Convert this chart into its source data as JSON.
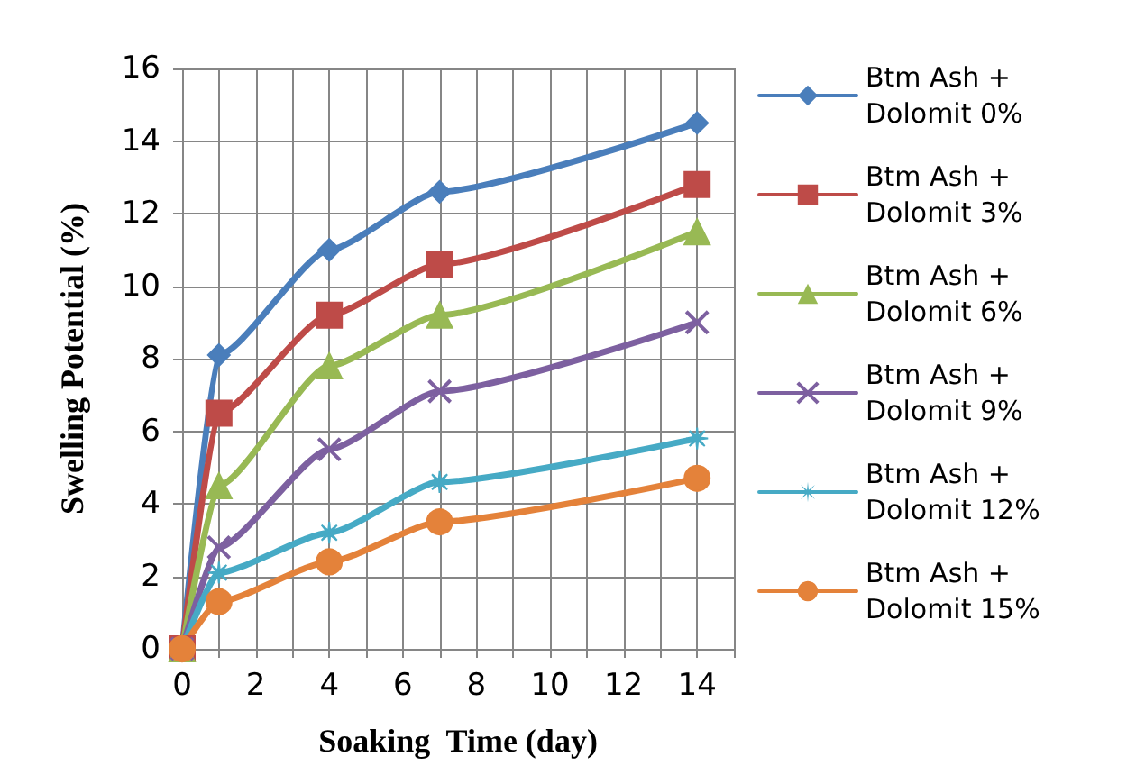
{
  "chart_data": {
    "type": "line",
    "xlabel": "Soaking  Time (day)",
    "ylabel": "Swelling Potential (%)",
    "xlim": [
      0,
      15
    ],
    "xticks": [
      0,
      {
        "value": 1,
        "label": null
      },
      2,
      {
        "value": 3,
        "label": null
      },
      4,
      {
        "value": 5,
        "label": null
      },
      6,
      {
        "value": 7,
        "label": null
      },
      8,
      {
        "value": 9,
        "label": null
      },
      10,
      {
        "value": 11,
        "label": null
      },
      12,
      {
        "value": 13,
        "label": null
      },
      14,
      {
        "value": 15,
        "label": null
      }
    ],
    "ylim": [
      0,
      16
    ],
    "yticks": [
      0,
      2,
      4,
      6,
      8,
      10,
      12,
      14,
      16
    ],
    "grid": true,
    "legend": "right",
    "series": [
      {
        "name": "Btm Ash + Dolomit 0%",
        "color": "#4a7ebb",
        "marker": "diamond",
        "x": [
          0,
          1,
          4,
          7,
          14
        ],
        "values": [
          0,
          8.1,
          11.0,
          12.6,
          14.5
        ]
      },
      {
        "name": "Btm Ash + Dolomit 3%",
        "color": "#be4b48",
        "marker": "square",
        "x": [
          0,
          1,
          4,
          7,
          14
        ],
        "values": [
          0,
          6.5,
          9.2,
          10.6,
          12.8
        ]
      },
      {
        "name": "Btm Ash + Dolomit 6%",
        "color": "#98b954",
        "marker": "triangle",
        "x": [
          0,
          1,
          4,
          7,
          14
        ],
        "values": [
          0,
          4.5,
          7.8,
          9.2,
          11.5
        ]
      },
      {
        "name": "Btm Ash + Dolomit 9%",
        "color": "#7d60a0",
        "marker": "cross",
        "x": [
          0,
          1,
          4,
          7,
          14
        ],
        "values": [
          0,
          2.8,
          5.5,
          7.1,
          9.0
        ]
      },
      {
        "name": "Btm Ash + Dolomit 12%",
        "color": "#46aac5",
        "marker": "star",
        "x": [
          0,
          1,
          4,
          7,
          14
        ],
        "values": [
          0,
          2.1,
          3.2,
          4.6,
          5.8
        ]
      },
      {
        "name": "Btm Ash + Dolomit 15%",
        "color": "#e4823a",
        "marker": "circle",
        "x": [
          0,
          1,
          4,
          7,
          14
        ],
        "values": [
          0,
          1.3,
          2.4,
          3.5,
          4.7
        ]
      }
    ]
  }
}
